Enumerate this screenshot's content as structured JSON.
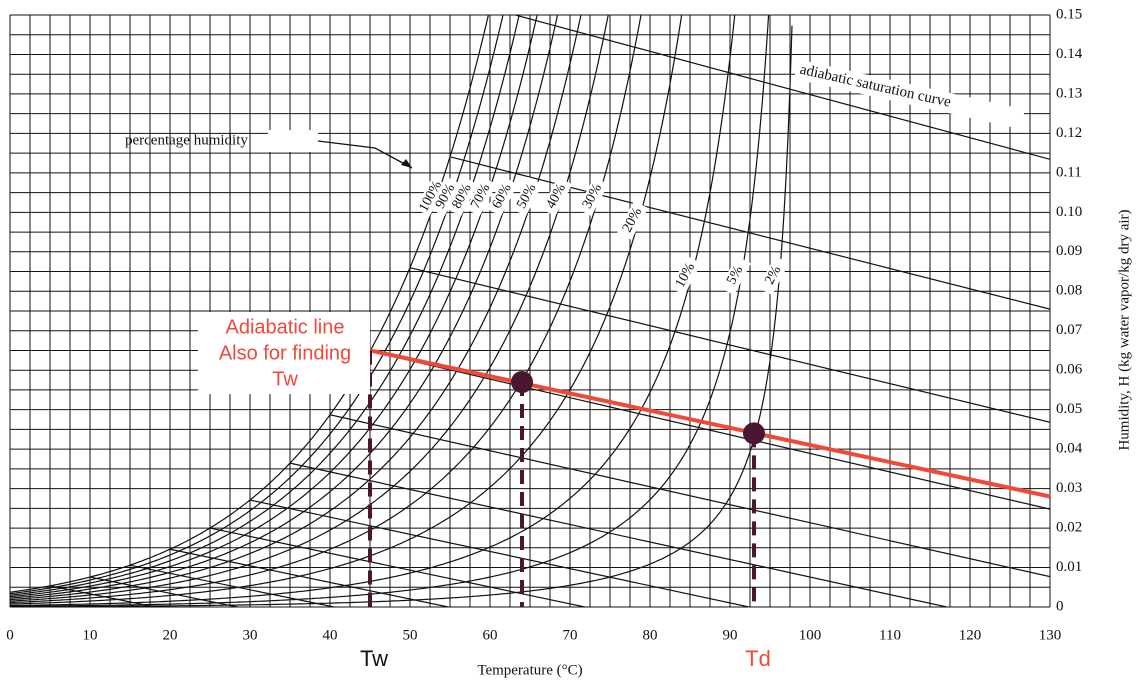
{
  "chart_data": {
    "type": "psychrometric",
    "x_label": "Temperature (°C)",
    "y_label": "Humidity, H (kg water vapor/kg dry air)",
    "xlim": [
      0,
      130
    ],
    "xticks": [
      0,
      10,
      20,
      30,
      40,
      50,
      60,
      70,
      80,
      90,
      100,
      110,
      120,
      130
    ],
    "ylim": [
      0,
      0.15
    ],
    "yticks": [
      0,
      0.01,
      0.02,
      0.03,
      0.04,
      0.05,
      0.06,
      0.07,
      0.08,
      0.09,
      {
        "value": 0.1,
        "label": "0.10"
      },
      0.11,
      0.12,
      0.13,
      0.14,
      0.15
    ],
    "grid": true,
    "humidity_curves": {
      "label": "percentage humidity",
      "values": [
        100,
        90,
        80,
        70,
        60,
        50,
        40,
        30,
        20,
        10,
        5,
        2
      ],
      "value_labels": [
        "100%",
        "90%",
        "80%",
        "70%",
        "60%",
        "50%",
        "40%",
        "30%",
        "20%",
        "10%",
        "5%",
        "2%"
      ]
    },
    "saturation_label": "adiabatic saturation curve",
    "annotation": {
      "lines": [
        "Adiabatic line",
        "Also for finding",
        "Tw"
      ],
      "color": "#f0493a"
    },
    "adiabatic_line": {
      "x": [
        45,
        130
      ],
      "values": [
        0.065,
        0.028
      ],
      "color": "#f0493a"
    },
    "markers": {
      "x": [
        45,
        64,
        93
      ],
      "values": [
        0.065,
        0.057,
        0.044
      ],
      "dot": [
        false,
        true,
        true
      ],
      "labels": [
        "Tw",
        null,
        "Td"
      ],
      "label_colors": [
        "#111111",
        null,
        "#f0493a"
      ],
      "color": "#4a1630"
    }
  }
}
